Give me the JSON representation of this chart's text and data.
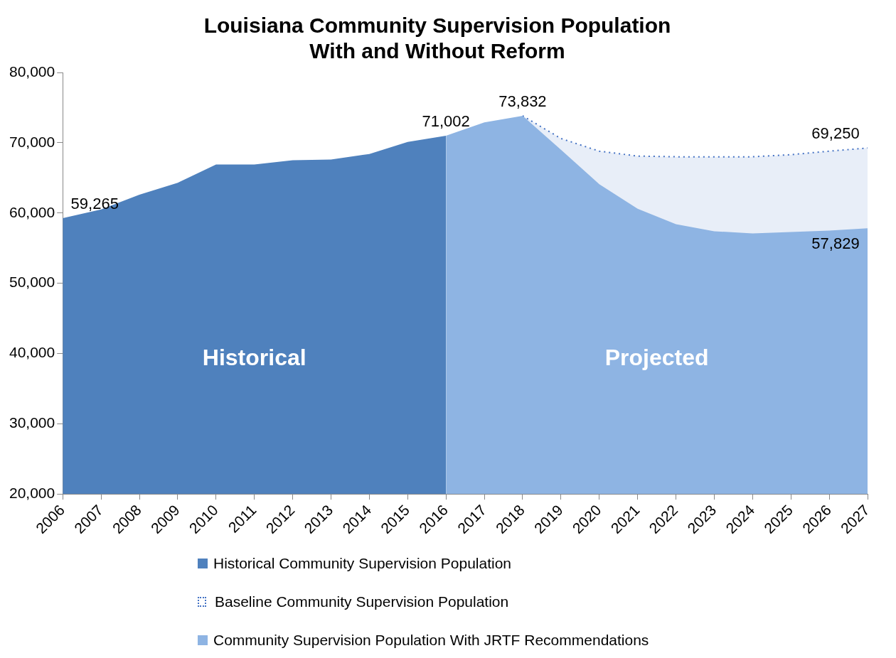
{
  "chart_data": {
    "type": "area",
    "title": "Louisiana Community Supervision Population\nWith and Without Reform",
    "categories": [
      "2006",
      "2007",
      "2008",
      "2009",
      "2010",
      "2011",
      "2012",
      "2013",
      "2014",
      "2015",
      "2016",
      "2017",
      "2018",
      "2019",
      "2020",
      "2021",
      "2022",
      "2023",
      "2024",
      "2025",
      "2026",
      "2027"
    ],
    "series": [
      {
        "name": "Historical Community Supervision Population",
        "color": "#4f81bd",
        "values": [
          59265,
          60500,
          62600,
          64300,
          66900,
          66900,
          67500,
          67600,
          68400,
          70100,
          71002,
          null,
          null,
          null,
          null,
          null,
          null,
          null,
          null,
          null,
          null,
          null
        ],
        "value_labels": [
          "59,265",
          null,
          null,
          null,
          null,
          null,
          null,
          null,
          null,
          null,
          "71,002",
          null,
          null,
          null,
          null,
          null,
          null,
          null,
          null,
          null,
          null,
          null
        ]
      },
      {
        "name": "Baseline Community Supervision Population",
        "color": "#4472c4",
        "values": [
          null,
          null,
          null,
          null,
          null,
          null,
          null,
          null,
          null,
          null,
          null,
          null,
          73832,
          70600,
          68800,
          68100,
          68000,
          68000,
          68000,
          68300,
          68800,
          69250
        ],
        "value_labels": [
          null,
          null,
          null,
          null,
          null,
          null,
          null,
          null,
          null,
          null,
          null,
          null,
          null,
          null,
          null,
          null,
          null,
          null,
          null,
          null,
          null,
          "69,250"
        ]
      },
      {
        "name": "Community Supervision Population With JRTF Recommendations",
        "color": "#8eb4e3",
        "values": [
          null,
          null,
          null,
          null,
          null,
          null,
          null,
          null,
          null,
          null,
          71002,
          72900,
          73832,
          69000,
          64100,
          60600,
          58400,
          57400,
          57100,
          57300,
          57500,
          57829
        ],
        "value_labels": [
          null,
          null,
          null,
          null,
          null,
          null,
          null,
          null,
          null,
          null,
          null,
          null,
          "73,832",
          null,
          null,
          null,
          null,
          null,
          null,
          null,
          null,
          "57,829"
        ]
      }
    ],
    "ylim": [
      20000,
      80000
    ],
    "yticks": [
      {
        "value": 20000,
        "label": "20,000"
      },
      {
        "value": 30000,
        "label": "30,000"
      },
      {
        "value": 40000,
        "label": "40,000"
      },
      {
        "value": 50000,
        "label": "50,000"
      },
      {
        "value": 60000,
        "label": "60,000"
      },
      {
        "value": 70000,
        "label": "70,000"
      },
      {
        "value": 80000,
        "label": "80,000"
      }
    ],
    "grid": false,
    "legend": "bottom",
    "annotations": [
      "Historical",
      "Projected"
    ]
  }
}
